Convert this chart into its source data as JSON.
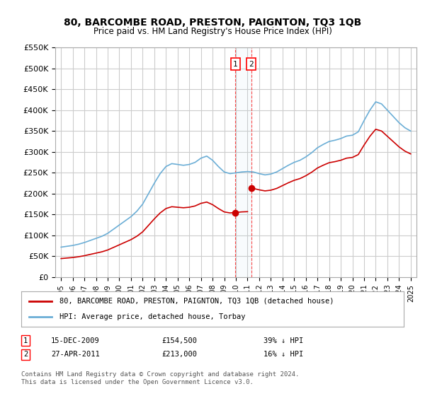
{
  "title": "80, BARCOMBE ROAD, PRESTON, PAIGNTON, TQ3 1QB",
  "subtitle": "Price paid vs. HM Land Registry's House Price Index (HPI)",
  "ylabel_ticks": [
    "£0",
    "£50K",
    "£100K",
    "£150K",
    "£200K",
    "£250K",
    "£300K",
    "£350K",
    "£400K",
    "£450K",
    "£500K",
    "£550K"
  ],
  "ytick_values": [
    0,
    50000,
    100000,
    150000,
    200000,
    250000,
    300000,
    350000,
    400000,
    450000,
    500000,
    550000
  ],
  "ylim": [
    0,
    575000
  ],
  "hpi_color": "#6baed6",
  "price_color": "#cc0000",
  "transaction1": {
    "date_num": 2009.96,
    "price": 154500,
    "label": "1"
  },
  "transaction2": {
    "date_num": 2011.32,
    "price": 213000,
    "label": "2"
  },
  "legend_property": "80, BARCOMBE ROAD, PRESTON, PAIGNTON, TQ3 1QB (detached house)",
  "legend_hpi": "HPI: Average price, detached house, Torbay",
  "table_rows": [
    {
      "num": "1",
      "date": "15-DEC-2009",
      "price": "£154,500",
      "pct": "39% ↓ HPI"
    },
    {
      "num": "2",
      "date": "27-APR-2011",
      "price": "£213,000",
      "pct": "16% ↓ HPI"
    }
  ],
  "footnote": "Contains HM Land Registry data © Crown copyright and database right 2024.\nThis data is licensed under the Open Government Licence v3.0.",
  "background_color": "#ffffff",
  "grid_color": "#cccccc",
  "xlim_start": 1994.5,
  "xlim_end": 2025.5
}
